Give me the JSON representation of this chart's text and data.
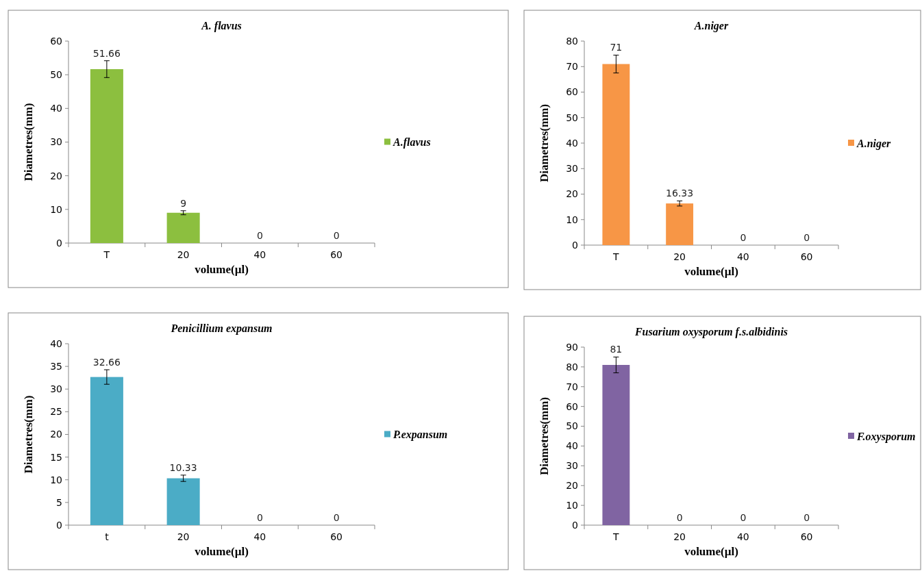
{
  "chart_data": [
    {
      "type": "bar",
      "title": "A. flavus",
      "xlabel": "volume(µl)",
      "ylabel": "Diametres(mm)",
      "categories": [
        "T",
        "20",
        "40",
        "60"
      ],
      "series": [
        {
          "name": "A.flavus",
          "color": "#8cbf3f",
          "values": [
            51.66,
            9,
            0,
            0
          ],
          "errors": [
            2.5,
            0.6,
            null,
            null
          ]
        }
      ],
      "ylim": [
        0,
        60
      ],
      "yticks": [
        0,
        10,
        20,
        30,
        40,
        50,
        60
      ],
      "data_labels": true,
      "legend": "right"
    },
    {
      "type": "bar",
      "title": "A.niger",
      "xlabel": "volume(µl)",
      "ylabel": "Diametres(mm)",
      "categories": [
        "T",
        "20",
        "40",
        "60"
      ],
      "series": [
        {
          "name": "A.niger",
          "color": "#f79646",
          "values": [
            71,
            16.33,
            0,
            0
          ],
          "errors": [
            3.5,
            1,
            null,
            null
          ]
        }
      ],
      "ylim": [
        0,
        80
      ],
      "yticks": [
        0,
        10,
        20,
        30,
        40,
        50,
        60,
        70,
        80
      ],
      "data_labels": true,
      "legend": "right"
    },
    {
      "type": "bar",
      "title": "Penicillium expansum",
      "xlabel": "volume(µl)",
      "ylabel": "Diametres(mm)",
      "categories": [
        "t",
        "20",
        "40",
        "60"
      ],
      "series": [
        {
          "name": "P.expansum",
          "color": "#4bacc6",
          "values": [
            32.66,
            10.33,
            0,
            0
          ],
          "errors": [
            1.6,
            0.7,
            null,
            null
          ]
        }
      ],
      "ylim": [
        0,
        40
      ],
      "yticks": [
        0,
        5,
        10,
        15,
        20,
        25,
        30,
        35,
        40
      ],
      "data_labels": true,
      "legend": "right"
    },
    {
      "type": "bar",
      "title": "Fusarium oxysporum f.s.albidinis",
      "xlabel": "volume(µl)",
      "ylabel": "Diametres(mm)",
      "categories": [
        "T",
        "20",
        "40",
        "60"
      ],
      "series": [
        {
          "name": "F.oxysporum",
          "color": "#8064a2",
          "values": [
            81,
            0,
            0,
            0
          ],
          "errors": [
            4,
            null,
            null,
            null
          ]
        }
      ],
      "ylim": [
        0,
        90
      ],
      "yticks": [
        0,
        10,
        20,
        30,
        40,
        50,
        60,
        70,
        80,
        90
      ],
      "data_labels": true,
      "legend": "right"
    }
  ]
}
